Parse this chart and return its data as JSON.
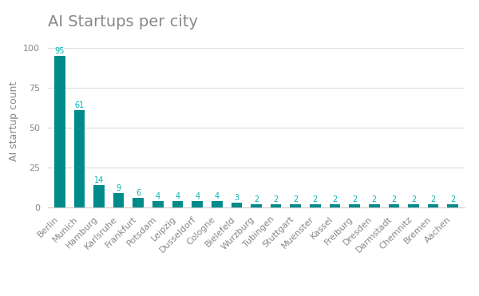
{
  "title": "AI Startups per city",
  "ylabel": "AI startup count",
  "categories": [
    "Berlin",
    "Munich",
    "Hamburg",
    "Karlsruhe",
    "Frankfurt",
    "Potsdam",
    "Leipzig",
    "Dusseldorf",
    "Cologne",
    "Bielefeld",
    "Wurzburg",
    "Tubingen",
    "Stuttgart",
    "Muenster",
    "Kassel",
    "Freiburg",
    "Dresden",
    "Darmstadt",
    "Chemnitz",
    "Bremen",
    "Aachen"
  ],
  "values": [
    95,
    61,
    14,
    9,
    6,
    4,
    4,
    4,
    4,
    3,
    2,
    2,
    2,
    2,
    2,
    2,
    2,
    2,
    2,
    2,
    2
  ],
  "bar_color": "#008B8B",
  "label_color": "#00B2B2",
  "ylim": [
    0,
    108
  ],
  "yticks": [
    0,
    25,
    50,
    75,
    100
  ],
  "background_color": "#ffffff",
  "grid_color": "#dddddd",
  "title_fontsize": 14,
  "label_fontsize": 7,
  "ylabel_fontsize": 9,
  "tick_fontsize": 8,
  "title_color": "#888888",
  "tick_color": "#888888",
  "ylabel_color": "#888888"
}
